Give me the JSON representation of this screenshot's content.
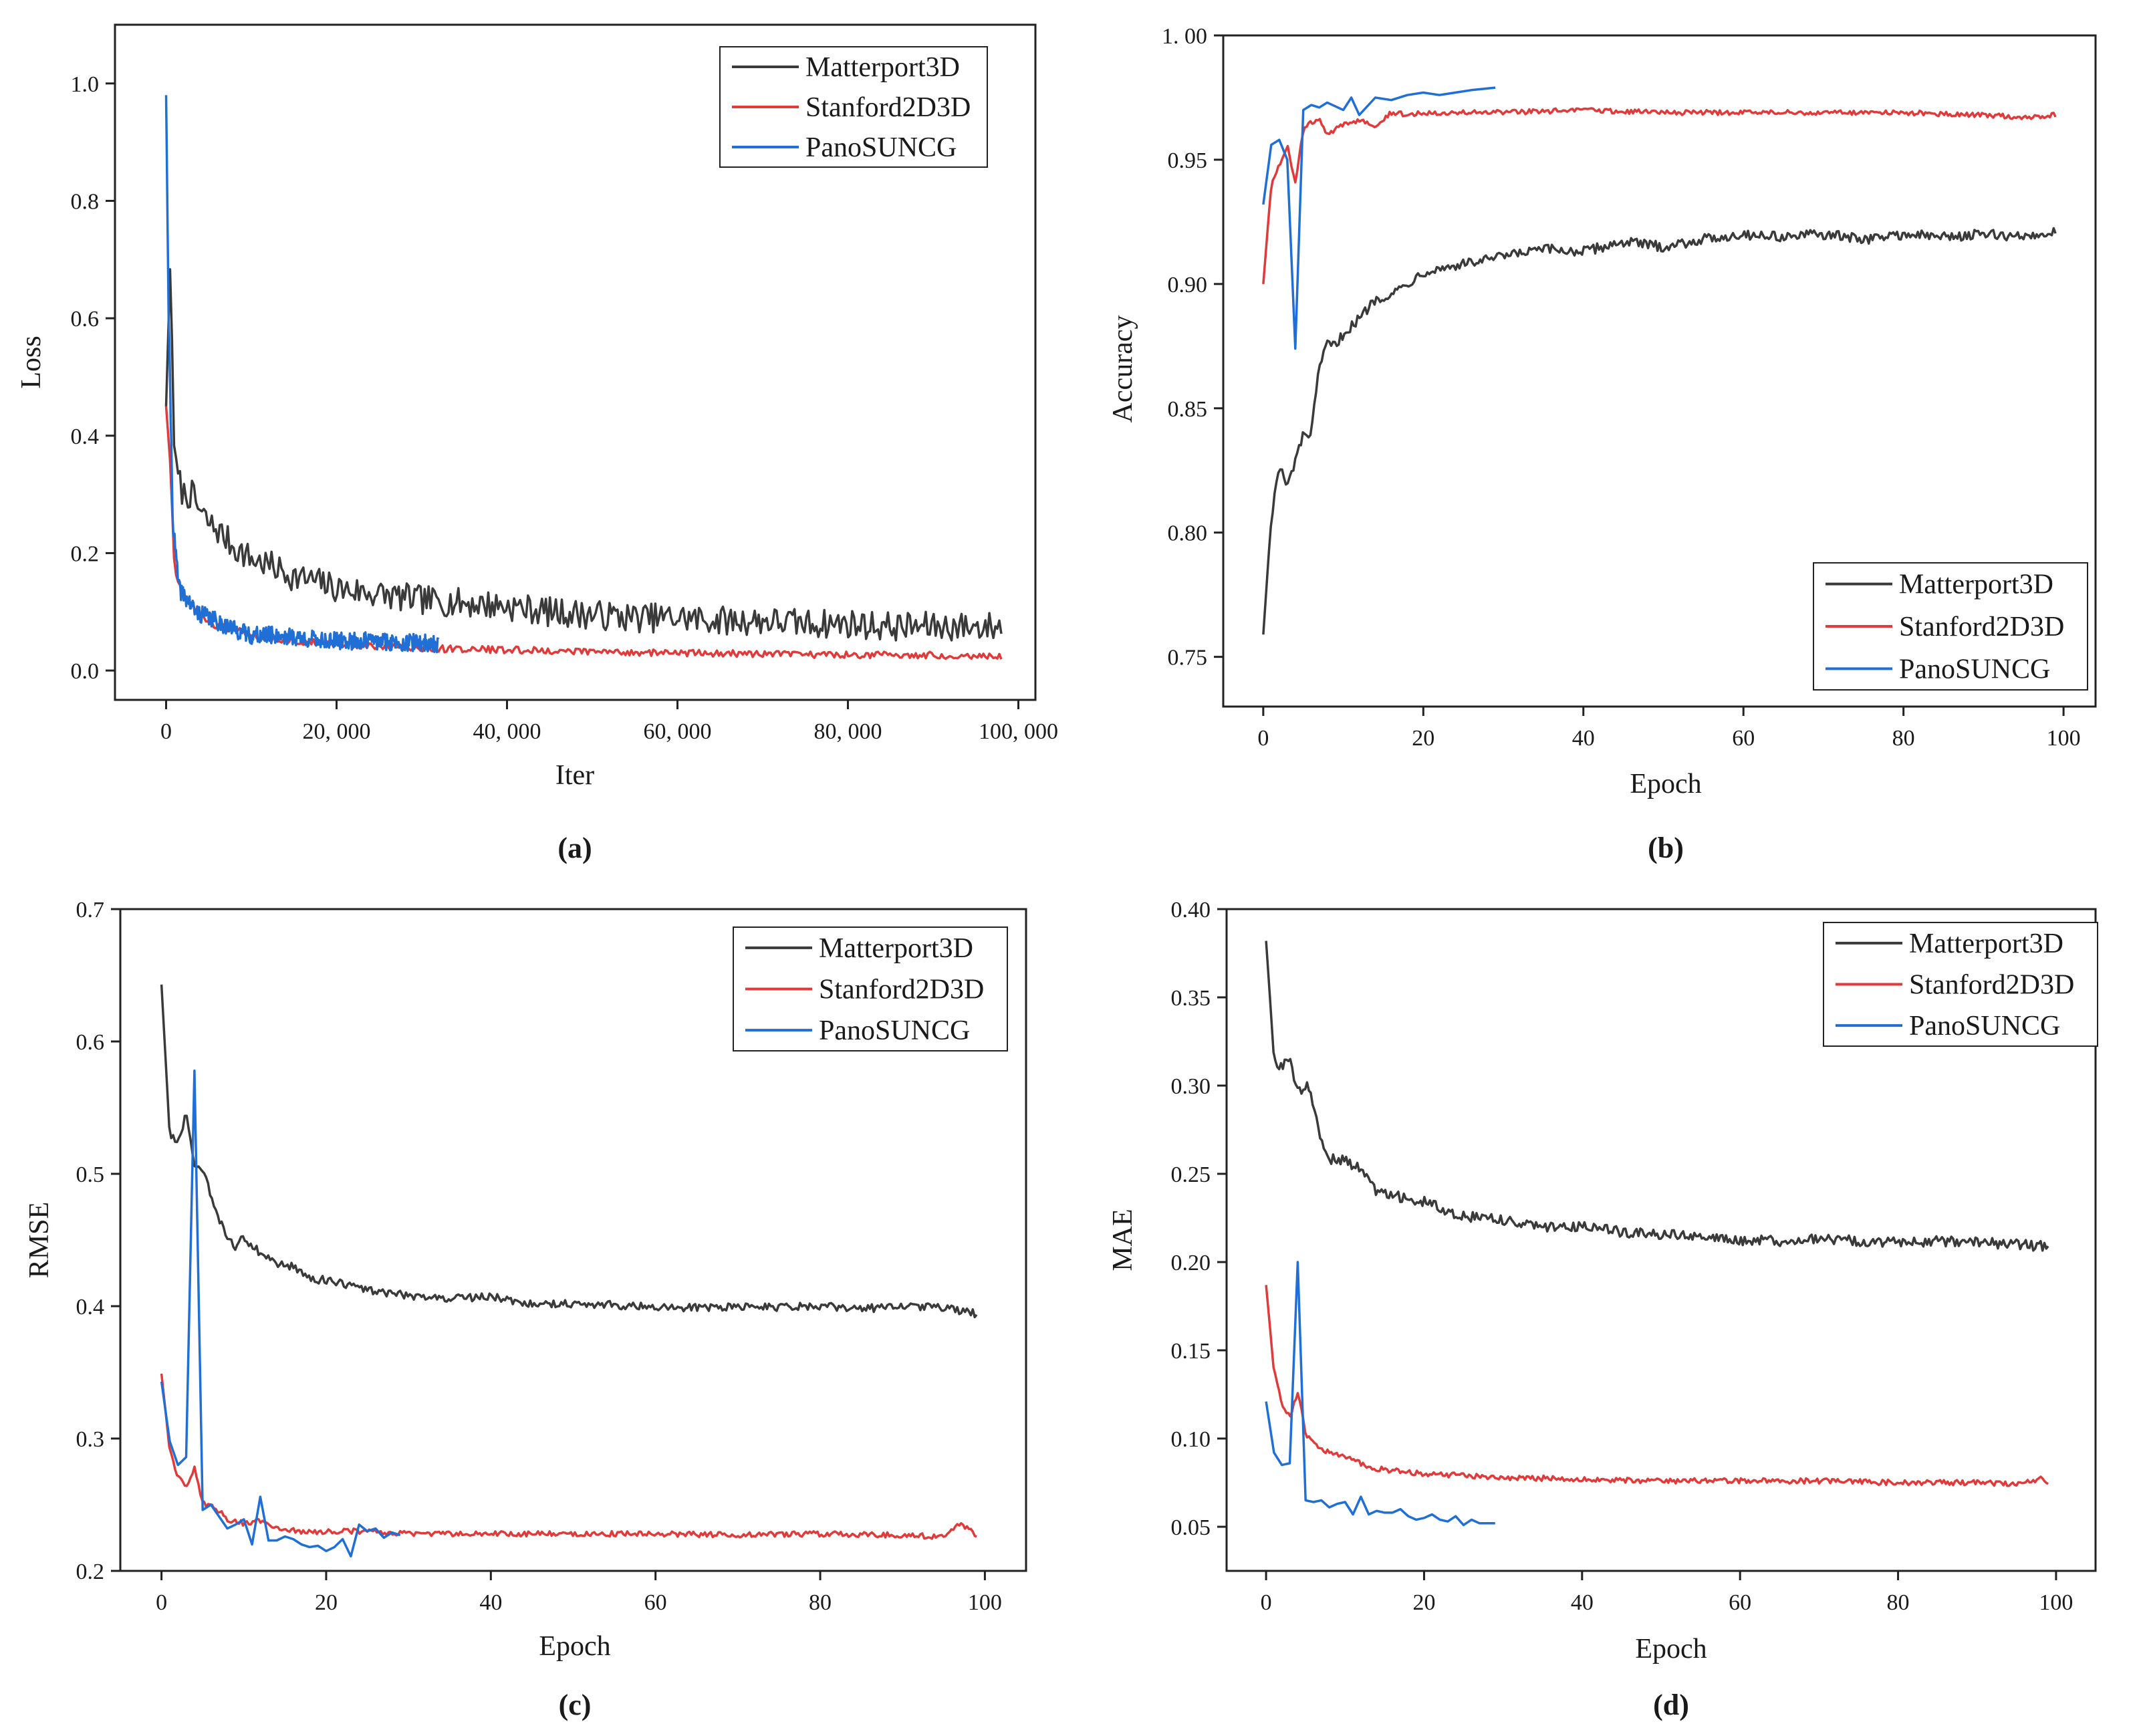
{
  "chart_data": [
    {
      "type": "line",
      "caption": "(a)",
      "xlabel": "Iter",
      "ylabel": "Loss",
      "xlim": [
        -6000,
        102000
      ],
      "ylim": [
        -0.05,
        1.1
      ],
      "xticks": [
        0,
        20000,
        40000,
        60000,
        80000,
        100000
      ],
      "xtick_labels": [
        "0",
        "20, 000",
        "40, 000",
        "60, 000",
        "80, 000",
        "100, 000"
      ],
      "yticks": [
        0.0,
        0.2,
        0.4,
        0.6,
        0.8,
        1.0
      ],
      "ytick_labels": [
        "0.0",
        "0.2",
        "0.4",
        "0.6",
        "0.8",
        "1.0"
      ],
      "legend_position": "top-right",
      "series": [
        {
          "name": "Matterport3D",
          "color": "#3a3a3a",
          "x": [
            0,
            500,
            1000,
            2000,
            3000,
            4000,
            5000,
            6000,
            8000,
            10000,
            12000,
            15000,
            18000,
            20000,
            25000,
            30000,
            35000,
            40000,
            45000,
            50000,
            55000,
            60000,
            65000,
            70000,
            75000,
            80000,
            85000,
            90000,
            95000,
            98000
          ],
          "y": [
            0.45,
            0.7,
            0.35,
            0.3,
            0.3,
            0.27,
            0.25,
            0.24,
            0.21,
            0.19,
            0.18,
            0.16,
            0.15,
            0.14,
            0.13,
            0.12,
            0.115,
            0.11,
            0.1,
            0.095,
            0.09,
            0.09,
            0.085,
            0.085,
            0.08,
            0.08,
            0.075,
            0.075,
            0.075,
            0.075
          ],
          "noise": 0.025
        },
        {
          "name": "Stanford2D3D",
          "color": "#e03a3a",
          "x": [
            0,
            500,
            1000,
            2000,
            3000,
            5000,
            8000,
            10000,
            15000,
            20000,
            25000,
            30000,
            40000,
            50000,
            60000,
            70000,
            80000,
            90000,
            98000
          ],
          "y": [
            0.45,
            0.35,
            0.17,
            0.13,
            0.11,
            0.08,
            0.07,
            0.06,
            0.05,
            0.045,
            0.04,
            0.038,
            0.035,
            0.032,
            0.03,
            0.028,
            0.027,
            0.026,
            0.025
          ],
          "noise": 0.006
        },
        {
          "name": "PanoSUNCG",
          "color": "#1f6fd6",
          "x": [
            0,
            300,
            800,
            1500,
            2500,
            3500,
            5000,
            6500,
            8000,
            10000,
            13000,
            16000,
            20000,
            24000,
            28000,
            32000
          ],
          "y": [
            0.98,
            0.6,
            0.25,
            0.14,
            0.12,
            0.1,
            0.09,
            0.08,
            0.07,
            0.06,
            0.06,
            0.055,
            0.05,
            0.05,
            0.048,
            0.045
          ],
          "noise": 0.015
        }
      ]
    },
    {
      "type": "line",
      "caption": "(b)",
      "xlabel": "Epoch",
      "ylabel": "Accuracy",
      "xlim": [
        -5,
        104
      ],
      "ylim": [
        0.73,
        1.0
      ],
      "xticks": [
        0,
        20,
        40,
        60,
        80,
        100
      ],
      "xtick_labels": [
        "0",
        "20",
        "40",
        "60",
        "80",
        "100"
      ],
      "yticks": [
        0.75,
        0.8,
        0.85,
        0.9,
        0.95,
        1.0
      ],
      "ytick_labels": [
        "0.75",
        "0.80",
        "0.85",
        "0.90",
        "0.95",
        "1. 00"
      ],
      "legend_position": "bottom-right",
      "series": [
        {
          "name": "Matterport3D",
          "color": "#3a3a3a",
          "x": [
            0,
            1,
            2,
            3,
            4,
            5,
            6,
            7,
            8,
            9,
            10,
            12,
            14,
            16,
            18,
            20,
            25,
            30,
            35,
            40,
            45,
            50,
            55,
            60,
            65,
            70,
            75,
            80,
            85,
            90,
            95,
            99
          ],
          "y": [
            0.759,
            0.806,
            0.827,
            0.818,
            0.829,
            0.839,
            0.84,
            0.866,
            0.876,
            0.875,
            0.88,
            0.886,
            0.894,
            0.896,
            0.9,
            0.905,
            0.908,
            0.911,
            0.914,
            0.913,
            0.917,
            0.915,
            0.918,
            0.92,
            0.919,
            0.92,
            0.918,
            0.92,
            0.919,
            0.92,
            0.919,
            0.921
          ],
          "noise": 0.002
        },
        {
          "name": "Stanford2D3D",
          "color": "#e03a3a",
          "x": [
            0,
            1,
            2,
            3,
            4,
            5,
            6,
            7,
            8,
            10,
            12,
            14,
            16,
            18,
            20,
            25,
            30,
            40,
            50,
            60,
            70,
            80,
            90,
            95,
            99
          ],
          "y": [
            0.9,
            0.94,
            0.948,
            0.956,
            0.94,
            0.962,
            0.965,
            0.966,
            0.96,
            0.964,
            0.966,
            0.964,
            0.969,
            0.968,
            0.969,
            0.969,
            0.969,
            0.97,
            0.969,
            0.969,
            0.969,
            0.969,
            0.968,
            0.967,
            0.968
          ],
          "noise": 0.001
        },
        {
          "name": "PanoSUNCG",
          "color": "#1f6fd6",
          "x": [
            0,
            1,
            2,
            3,
            4,
            5,
            6,
            7,
            8,
            10,
            11,
            12,
            14,
            16,
            18,
            20,
            22,
            24,
            26,
            29
          ],
          "y": [
            0.932,
            0.956,
            0.958,
            0.95,
            0.874,
            0.97,
            0.972,
            0.971,
            0.973,
            0.97,
            0.975,
            0.968,
            0.975,
            0.974,
            0.976,
            0.977,
            0.976,
            0.977,
            0.978,
            0.979
          ],
          "noise": 0.0
        }
      ]
    },
    {
      "type": "line",
      "caption": "(c)",
      "xlabel": "Epoch",
      "ylabel": "RMSE",
      "xlim": [
        -5,
        105
      ],
      "ylim": [
        0.2,
        0.7
      ],
      "xticks": [
        0,
        20,
        40,
        60,
        80,
        100
      ],
      "xtick_labels": [
        "0",
        "20",
        "40",
        "60",
        "80",
        "100"
      ],
      "yticks": [
        0.2,
        0.3,
        0.4,
        0.5,
        0.6,
        0.7
      ],
      "ytick_labels": [
        "0.2",
        "0.3",
        "0.4",
        "0.5",
        "0.6",
        "0.7"
      ],
      "legend_position": "top-right",
      "series": [
        {
          "name": "Matterport3D",
          "color": "#3a3a3a",
          "x": [
            0,
            1,
            2,
            3,
            4,
            5,
            6,
            7,
            8,
            9,
            10,
            12,
            14,
            16,
            18,
            20,
            25,
            30,
            35,
            40,
            45,
            50,
            55,
            60,
            65,
            70,
            75,
            80,
            85,
            90,
            95,
            99
          ],
          "y": [
            0.643,
            0.53,
            0.522,
            0.546,
            0.504,
            0.502,
            0.484,
            0.465,
            0.453,
            0.445,
            0.452,
            0.44,
            0.432,
            0.43,
            0.42,
            0.42,
            0.412,
            0.408,
            0.406,
            0.407,
            0.402,
            0.402,
            0.401,
            0.399,
            0.399,
            0.4,
            0.399,
            0.4,
            0.398,
            0.4,
            0.399,
            0.394
          ],
          "noise": 0.003
        },
        {
          "name": "Stanford2D3D",
          "color": "#e03a3a",
          "x": [
            0,
            1,
            2,
            3,
            4,
            5,
            6,
            7,
            8,
            10,
            12,
            14,
            16,
            18,
            20,
            25,
            30,
            40,
            50,
            60,
            70,
            80,
            90,
            95,
            97,
            99
          ],
          "y": [
            0.349,
            0.291,
            0.272,
            0.263,
            0.277,
            0.251,
            0.249,
            0.245,
            0.239,
            0.236,
            0.238,
            0.233,
            0.231,
            0.229,
            0.23,
            0.23,
            0.228,
            0.228,
            0.228,
            0.228,
            0.227,
            0.228,
            0.227,
            0.226,
            0.235,
            0.227
          ],
          "noise": 0.002
        },
        {
          "name": "PanoSUNCG",
          "color": "#1f6fd6",
          "x": [
            0,
            1,
            2,
            3,
            4,
            5,
            6,
            7,
            8,
            9,
            10,
            11,
            12,
            13,
            14,
            15,
            16,
            17,
            18,
            19,
            20,
            21,
            22,
            23,
            24,
            25,
            26,
            27,
            28,
            29
          ],
          "y": [
            0.343,
            0.298,
            0.28,
            0.286,
            0.578,
            0.246,
            0.25,
            0.241,
            0.232,
            0.235,
            0.239,
            0.22,
            0.256,
            0.223,
            0.223,
            0.226,
            0.224,
            0.22,
            0.218,
            0.219,
            0.215,
            0.218,
            0.224,
            0.211,
            0.235,
            0.23,
            0.232,
            0.225,
            0.229,
            0.227
          ],
          "noise": 0.0
        }
      ]
    },
    {
      "type": "line",
      "caption": "(d)",
      "xlabel": "Epoch",
      "ylabel": "MAE",
      "xlim": [
        -5,
        105
      ],
      "ylim": [
        0.025,
        0.4
      ],
      "xticks": [
        0,
        20,
        40,
        60,
        80,
        100
      ],
      "xtick_labels": [
        "0",
        "20",
        "40",
        "60",
        "80",
        "100"
      ],
      "yticks": [
        0.05,
        0.1,
        0.15,
        0.2,
        0.25,
        0.3,
        0.35,
        0.4
      ],
      "ytick_labels": [
        "0.05",
        "0.10",
        "0.15",
        "0.20",
        "0.25",
        "0.30",
        "0.35",
        "0.40"
      ],
      "legend_position": "top-right",
      "series": [
        {
          "name": "Matterport3D",
          "color": "#3a3a3a",
          "x": [
            0,
            1,
            2,
            3,
            4,
            5,
            6,
            7,
            8,
            9,
            10,
            12,
            14,
            16,
            18,
            20,
            25,
            30,
            35,
            40,
            45,
            50,
            55,
            60,
            65,
            70,
            75,
            80,
            85,
            90,
            95,
            99
          ],
          "y": [
            0.382,
            0.316,
            0.309,
            0.317,
            0.296,
            0.301,
            0.291,
            0.268,
            0.258,
            0.258,
            0.257,
            0.253,
            0.24,
            0.239,
            0.235,
            0.234,
            0.226,
            0.224,
            0.22,
            0.22,
            0.217,
            0.216,
            0.215,
            0.212,
            0.212,
            0.213,
            0.212,
            0.211,
            0.212,
            0.211,
            0.21,
            0.209
          ],
          "noise": 0.003
        },
        {
          "name": "Stanford2D3D",
          "color": "#e03a3a",
          "x": [
            0,
            1,
            2,
            3,
            4,
            5,
            6,
            7,
            8,
            10,
            12,
            14,
            16,
            18,
            20,
            25,
            30,
            40,
            50,
            60,
            70,
            80,
            90,
            95,
            98,
            99
          ],
          "y": [
            0.187,
            0.138,
            0.12,
            0.112,
            0.127,
            0.103,
            0.098,
            0.093,
            0.092,
            0.089,
            0.086,
            0.083,
            0.082,
            0.081,
            0.08,
            0.079,
            0.078,
            0.077,
            0.076,
            0.076,
            0.076,
            0.075,
            0.075,
            0.074,
            0.077,
            0.075
          ],
          "noise": 0.0015
        },
        {
          "name": "PanoSUNCG",
          "color": "#1f6fd6",
          "x": [
            0,
            1,
            2,
            3,
            4,
            5,
            6,
            7,
            8,
            9,
            10,
            11,
            12,
            13,
            14,
            15,
            16,
            17,
            18,
            19,
            20,
            21,
            22,
            23,
            24,
            25,
            26,
            27,
            28,
            29
          ],
          "y": [
            0.121,
            0.092,
            0.085,
            0.086,
            0.2,
            0.065,
            0.064,
            0.065,
            0.061,
            0.063,
            0.064,
            0.057,
            0.067,
            0.057,
            0.059,
            0.058,
            0.058,
            0.06,
            0.056,
            0.054,
            0.055,
            0.057,
            0.054,
            0.053,
            0.056,
            0.051,
            0.054,
            0.052,
            0.052,
            0.052
          ],
          "noise": 0.0
        }
      ]
    }
  ]
}
